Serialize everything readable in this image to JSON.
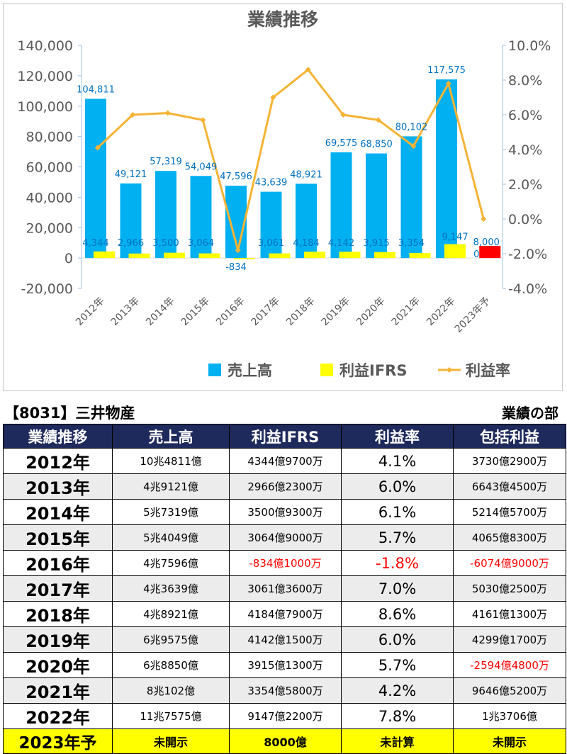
{
  "chart_data": {
    "type": "bar",
    "title": "業績推移",
    "categories": [
      "2012年",
      "2013年",
      "2014年",
      "2015年",
      "2016年",
      "2017年",
      "2018年",
      "2019年",
      "2020年",
      "2021年",
      "2022年",
      "2023年予"
    ],
    "series": [
      {
        "name": "売上高",
        "kind": "bar",
        "axis": "left",
        "color": "#00b0f0",
        "values": [
          104811,
          49121,
          57319,
          54049,
          47596,
          43639,
          48921,
          69575,
          68850,
          80102,
          117575,
          0
        ],
        "labels": [
          "104,811",
          "49,121",
          "57,319",
          "54,049",
          "47,596",
          "43,639",
          "48,921",
          "69,575",
          "68,850",
          "80,102",
          "117,575",
          "0"
        ]
      },
      {
        "name": "利益IFRS",
        "kind": "bar",
        "axis": "left",
        "color": "#ffff00",
        "values": [
          4344,
          2966,
          3500,
          3064,
          -834,
          3061,
          4184,
          4142,
          3915,
          3354,
          9147,
          8000
        ],
        "labels": [
          "4,344",
          "2,966",
          "3,500",
          "3,064",
          "-834",
          "3,061",
          "4,184",
          "4,142",
          "3,915",
          "3,354",
          "9,147",
          "8,000"
        ],
        "highlight_color": "#ff0000"
      },
      {
        "name": "利益率",
        "kind": "line",
        "axis": "right",
        "color": "#f5b335",
        "values": [
          4.1,
          6.0,
          6.1,
          5.7,
          -1.8,
          7.0,
          8.6,
          6.0,
          5.7,
          4.2,
          7.8,
          0.0
        ]
      }
    ],
    "left_axis": {
      "min": -20000,
      "max": 140000,
      "ticks": [
        "-20,000",
        "0",
        "20,000",
        "40,000",
        "60,000",
        "80,000",
        "100,000",
        "120,000",
        "140,000"
      ]
    },
    "right_axis": {
      "min": -4.0,
      "max": 10.0,
      "ticks": [
        "-4.0%",
        "-2.0%",
        "0.0%",
        "2.0%",
        "4.0%",
        "6.0%",
        "8.0%",
        "10.0%"
      ]
    },
    "grid": false,
    "legend_placement": "bottom"
  },
  "table": {
    "header_left": "【8031】三井物産",
    "header_right": "業績の部",
    "columns": [
      "業績推移",
      "売上高",
      "利益IFRS",
      "利益率",
      "包括利益"
    ],
    "rows": [
      {
        "year": "2012年",
        "sales": "10兆4811億",
        "profit": "4344億9700万",
        "rate": "4.1%",
        "comp": "3730億2900万"
      },
      {
        "year": "2013年",
        "sales": "4兆9121億",
        "profit": "2966億2300万",
        "rate": "6.0%",
        "comp": "6643億4500万"
      },
      {
        "year": "2014年",
        "sales": "5兆7319億",
        "profit": "3500億9300万",
        "rate": "6.1%",
        "comp": "5214億5700万"
      },
      {
        "year": "2015年",
        "sales": "5兆4049億",
        "profit": "3064億9000万",
        "rate": "5.7%",
        "comp": "4065億8300万"
      },
      {
        "year": "2016年",
        "sales": "4兆7596億",
        "profit": "-834億1000万",
        "rate": "-1.8%",
        "comp": "-6074億9000万"
      },
      {
        "year": "2017年",
        "sales": "4兆3639億",
        "profit": "3061億3600万",
        "rate": "7.0%",
        "comp": "5030億2500万"
      },
      {
        "year": "2018年",
        "sales": "4兆8921億",
        "profit": "4184億7900万",
        "rate": "8.6%",
        "comp": "4161億1300万"
      },
      {
        "year": "2019年",
        "sales": "6兆9575億",
        "profit": "4142億1500万",
        "rate": "6.0%",
        "comp": "4299億1700万"
      },
      {
        "year": "2020年",
        "sales": "6兆8850億",
        "profit": "3915億1300万",
        "rate": "5.7%",
        "comp": "-2594億4800万"
      },
      {
        "year": "2021年",
        "sales": "8兆102億",
        "profit": "3354億5800万",
        "rate": "4.2%",
        "comp": "9646億5200万"
      },
      {
        "year": "2022年",
        "sales": "11兆7575億",
        "profit": "9147億2200万",
        "rate": "7.8%",
        "comp": "1兆3706億"
      },
      {
        "year": "2023年予",
        "sales": "未開示",
        "profit": "8000億",
        "rate": "未計算",
        "comp": "未開示"
      }
    ]
  }
}
